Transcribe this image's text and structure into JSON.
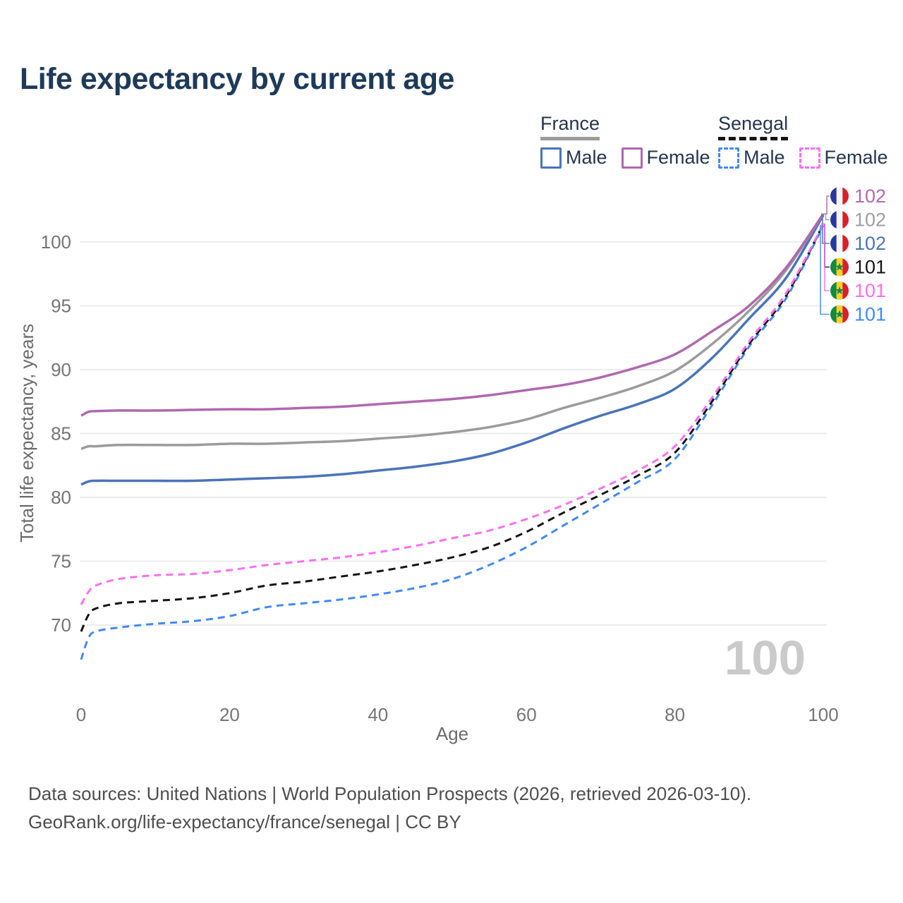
{
  "title": "Life expectancy by current age",
  "watermark": "100",
  "legend": {
    "groups": [
      {
        "name": "France",
        "line_style": "solid",
        "line_color": "#9b9b9b",
        "items": [
          {
            "label": "Male",
            "color": "#4a74b8"
          },
          {
            "label": "Female",
            "color": "#af68af"
          }
        ]
      },
      {
        "name": "Senegal",
        "line_style": "dashed",
        "line_color": "#141414",
        "items": [
          {
            "label": "Male",
            "color": "#4189f6"
          },
          {
            "label": "Female",
            "color": "#fb6ff0"
          }
        ]
      }
    ]
  },
  "footer": {
    "line1": "Data sources: United Nations | World Population Prospects (2026, retrieved 2026-03-10).",
    "line2": "GeoRank.org/life-expectancy/france/senegal | CC BY"
  },
  "chart_data": {
    "type": "line",
    "title": "Life expectancy by current age",
    "xlabel": "Age",
    "ylabel": "Total life expectancy, years",
    "xlim": [
      0,
      100
    ],
    "ylim": [
      67,
      103
    ],
    "xticks": [
      0,
      20,
      40,
      60,
      80,
      100
    ],
    "yticks": [
      70,
      75,
      80,
      85,
      90,
      95,
      100
    ],
    "grid": "horizontal",
    "legend_position": "top-right",
    "x": [
      0,
      1,
      2,
      5,
      10,
      15,
      20,
      25,
      30,
      35,
      40,
      45,
      50,
      55,
      60,
      65,
      70,
      75,
      80,
      85,
      90,
      95,
      100
    ],
    "series": [
      {
        "id": "fr_male",
        "name": "France — Male",
        "country": "France",
        "sex": "Male",
        "style": "solid",
        "color": "#4a74b8",
        "values": [
          81.0,
          81.25,
          81.3,
          81.3,
          81.3,
          81.3,
          81.4,
          81.5,
          81.6,
          81.8,
          82.1,
          82.4,
          82.8,
          83.4,
          84.3,
          85.4,
          86.4,
          87.3,
          88.5,
          90.9,
          94.0,
          97.2,
          102.1
        ]
      },
      {
        "id": "fr_total",
        "name": "France — Both sexes",
        "country": "France",
        "sex": "Both",
        "style": "solid",
        "color": "#9b9b9b",
        "values": [
          83.8,
          84.0,
          84.0,
          84.1,
          84.1,
          84.1,
          84.2,
          84.2,
          84.3,
          84.4,
          84.6,
          84.8,
          85.1,
          85.5,
          86.1,
          87.0,
          87.8,
          88.7,
          89.9,
          92.0,
          94.6,
          97.8,
          102.2
        ]
      },
      {
        "id": "fr_female",
        "name": "France — Female",
        "country": "France",
        "sex": "Female",
        "style": "solid",
        "color": "#af68af",
        "values": [
          86.4,
          86.7,
          86.75,
          86.8,
          86.8,
          86.85,
          86.9,
          86.9,
          87.0,
          87.1,
          87.3,
          87.5,
          87.7,
          88.0,
          88.4,
          88.8,
          89.4,
          90.2,
          91.2,
          93.0,
          95.0,
          98.0,
          102.2
        ]
      },
      {
        "id": "sn_male",
        "name": "Senegal — Male",
        "country": "Senegal",
        "sex": "Male",
        "style": "dashed",
        "color": "#4189f6",
        "values": [
          67.3,
          69.0,
          69.5,
          69.8,
          70.1,
          70.3,
          70.7,
          71.4,
          71.7,
          72.0,
          72.4,
          72.9,
          73.6,
          74.7,
          76.1,
          77.8,
          79.5,
          81.2,
          83.0,
          87.2,
          91.8,
          95.6,
          101.3
        ]
      },
      {
        "id": "sn_total",
        "name": "Senegal — Both sexes",
        "country": "Senegal",
        "sex": "Both",
        "style": "dashed",
        "color": "#141414",
        "values": [
          69.5,
          70.8,
          71.3,
          71.7,
          71.9,
          72.1,
          72.5,
          73.1,
          73.4,
          73.8,
          74.2,
          74.7,
          75.3,
          76.1,
          77.3,
          78.8,
          80.2,
          81.7,
          83.5,
          87.5,
          92.0,
          95.8,
          101.4
        ]
      },
      {
        "id": "sn_female",
        "name": "Senegal — Female",
        "country": "Senegal",
        "sex": "Female",
        "style": "dashed",
        "color": "#fb6ff0",
        "values": [
          71.6,
          72.6,
          73.1,
          73.6,
          73.9,
          74.0,
          74.3,
          74.7,
          75.0,
          75.3,
          75.7,
          76.2,
          76.8,
          77.4,
          78.3,
          79.4,
          80.7,
          82.1,
          84.0,
          87.8,
          92.2,
          96.0,
          101.4
        ]
      }
    ],
    "end_labels": [
      {
        "series": "fr_female",
        "label": "102",
        "color": "#b06ab2",
        "flag": "france"
      },
      {
        "series": "fr_total",
        "label": "102",
        "color": "#9e9e9e",
        "flag": "france"
      },
      {
        "series": "fr_male",
        "label": "102",
        "color": "#4a74b8",
        "flag": "france"
      },
      {
        "series": "sn_total",
        "label": "101",
        "color": "#141414",
        "flag": "senegal"
      },
      {
        "series": "sn_female",
        "label": "101",
        "color": "#fb6ff0",
        "flag": "senegal"
      },
      {
        "series": "sn_male",
        "label": "101",
        "color": "#4189f6",
        "flag": "senegal"
      }
    ],
    "flag_palettes": {
      "france": {
        "stripes": [
          "#29389e",
          "#f4f4f4",
          "#d7202c"
        ]
      },
      "senegal": {
        "stripes": [
          "#138a3e",
          "#fdd12e",
          "#d7202c"
        ],
        "star": "#138a3e"
      }
    }
  }
}
